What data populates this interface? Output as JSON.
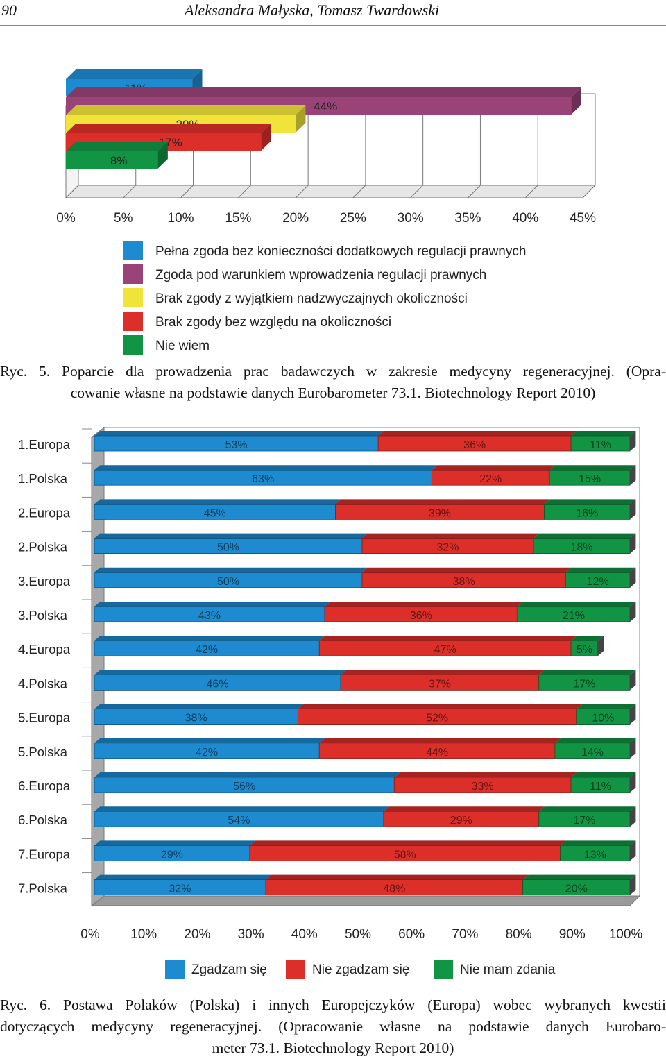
{
  "header": {
    "page_number": "90",
    "authors": "Aleksandra Małyska, Tomasz Twardowski"
  },
  "figure5": {
    "caption_line1": "Ryc. 5. Poparcie dla prowadzenia prac badawczych w zakresie medycyny regeneracyjnej. (Opra-",
    "caption_line2": "cowanie własne na podstawie danych Eurobarometer 73.1. Biotechnology Report 2010)",
    "chart_data": {
      "type": "bar",
      "orientation": "horizontal",
      "xlim": [
        0,
        45
      ],
      "x_ticks": [
        "0%",
        "5%",
        "10%",
        "15%",
        "20%",
        "25%",
        "30%",
        "35%",
        "40%",
        "45%"
      ],
      "grid": true,
      "legend_position": "bottom",
      "series": [
        {
          "name": "Pełna zgoda bez konieczności dodatkowych regulacji prawnych",
          "value": 11,
          "label": "11%",
          "color": "#1e8bd0"
        },
        {
          "name": "Zgoda pod warunkiem wprowadzenia regulacji prawnych",
          "value": 44,
          "label": "44%",
          "color": "#9a4378"
        },
        {
          "name": "Brak zgody z wyjątkiem nadzwyczajnych okoliczności",
          "value": 20,
          "label": "20%",
          "color": "#f0e43a"
        },
        {
          "name": "Brak zgody bez względu na okoliczności",
          "value": 17,
          "label": "17%",
          "color": "#dc2f2a"
        },
        {
          "name": "Nie wiem",
          "value": 8,
          "label": "8%",
          "color": "#129445"
        }
      ]
    }
  },
  "figure6": {
    "caption_line1": "Ryc. 6. Postawa Polaków (Polska) i innych Europejczyków (Europa) wobec wybranych kwestii",
    "caption_line2": "dotyczących medycyny regeneracyjnej. (Opracowanie własne na podstawie danych Eurobaro-",
    "caption_line3": "meter 73.1. Biotechnology Report 2010)",
    "chart_data": {
      "type": "bar",
      "orientation": "horizontal",
      "stacked": true,
      "xlim": [
        0,
        100
      ],
      "x_ticks": [
        "0%",
        "10%",
        "20%",
        "30%",
        "40%",
        "50%",
        "60%",
        "70%",
        "80%",
        "90%",
        "100%"
      ],
      "legend_position": "bottom",
      "categories": [
        "1.Europa",
        "1.Polska",
        "2.Europa",
        "2.Polska",
        "3.Europa",
        "3.Polska",
        "4.Europa",
        "4.Polska",
        "5.Europa",
        "5.Polska",
        "6.Europa",
        "6.Polska",
        "7.Europa",
        "7.Polska"
      ],
      "series": [
        {
          "name": "Zgadzam się",
          "color": "#1e8bd0",
          "values": [
            53,
            63,
            45,
            50,
            50,
            43,
            42,
            46,
            38,
            42,
            56,
            54,
            29,
            32
          ],
          "labels": [
            "53%",
            "63%",
            "45%",
            "50%",
            "50%",
            "43%",
            "42%",
            "46%",
            "38%",
            "42%",
            "56%",
            "54%",
            "29%",
            "32%"
          ]
        },
        {
          "name": "Nie zgadzam się",
          "color": "#dc2f2a",
          "values": [
            36,
            22,
            39,
            32,
            38,
            36,
            47,
            37,
            52,
            44,
            33,
            29,
            58,
            48
          ],
          "labels": [
            "36%",
            "22%",
            "39%",
            "32%",
            "38%",
            "36%",
            "47%",
            "37%",
            "52%",
            "44%",
            "33%",
            "29%",
            "58%",
            "48%"
          ]
        },
        {
          "name": "Nie mam zdania",
          "color": "#129445",
          "values": [
            11,
            15,
            16,
            18,
            12,
            21,
            5,
            17,
            10,
            14,
            11,
            17,
            13,
            20
          ],
          "labels": [
            "11%",
            "15%",
            "16%",
            "18%",
            "12%",
            "21%",
            "5%",
            "17%",
            "10%",
            "14%",
            "11%",
            "17%",
            "13%",
            "20%"
          ]
        }
      ]
    }
  }
}
